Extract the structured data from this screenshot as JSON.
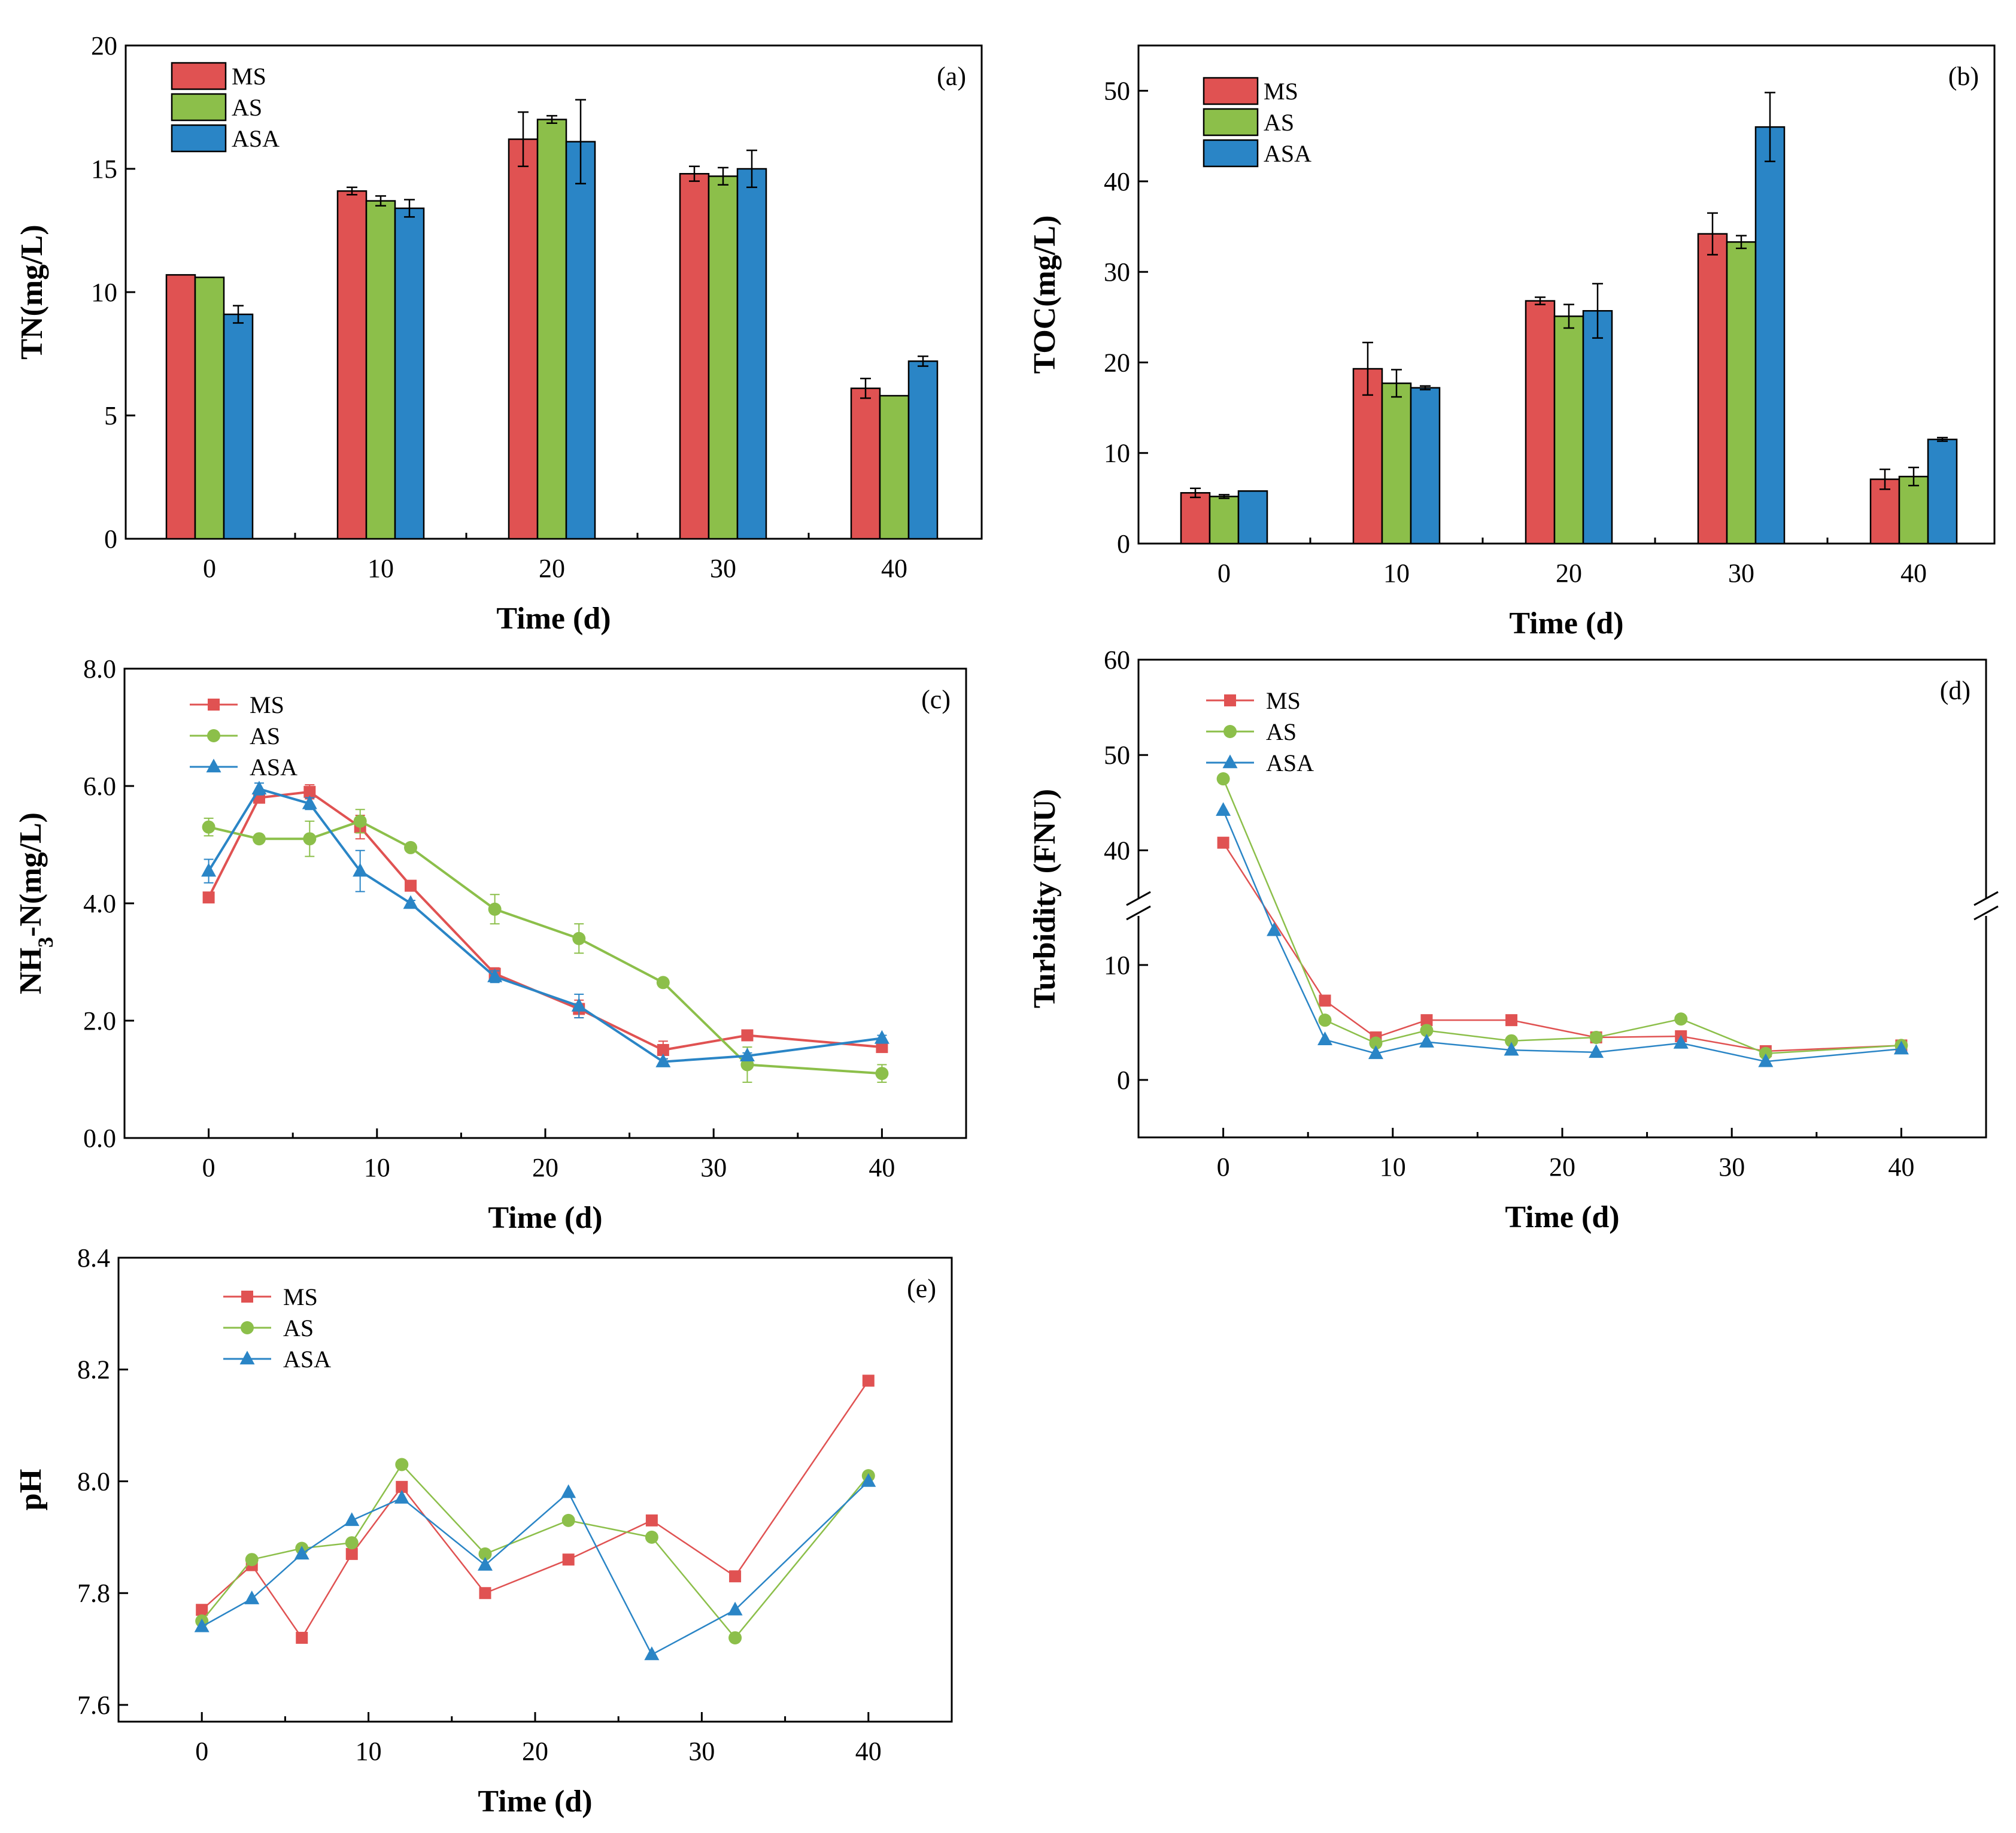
{
  "colors": {
    "MS": "#e05252",
    "AS": "#8cbf4a",
    "ASA": "#2a85c6",
    "axis": "#000000"
  },
  "chart_data": [
    {
      "id": "a",
      "type": "bar",
      "panel_label": "(a)",
      "title": "",
      "xlabel": "Time (d)",
      "ylabel": "TN(mg/L)",
      "ylim": [
        0,
        20
      ],
      "yticks": [
        "0",
        "5",
        "10",
        "15",
        "20"
      ],
      "categories": [
        "0",
        "10",
        "20",
        "30",
        "40"
      ],
      "series": [
        {
          "name": "MS",
          "values": [
            10.7,
            14.1,
            16.2,
            14.8,
            6.1
          ],
          "errors": [
            0,
            0.15,
            1.1,
            0.3,
            0.4
          ]
        },
        {
          "name": "AS",
          "values": [
            10.6,
            13.7,
            17.0,
            14.7,
            5.8
          ],
          "errors": [
            0,
            0.2,
            0.15,
            0.35,
            0
          ]
        },
        {
          "name": "ASA",
          "values": [
            9.1,
            13.4,
            16.1,
            15.0,
            7.2
          ],
          "errors": [
            0.35,
            0.35,
            1.7,
            0.75,
            0.2
          ]
        }
      ]
    },
    {
      "id": "b",
      "type": "bar",
      "panel_label": "(b)",
      "title": "",
      "xlabel": "Time (d)",
      "ylabel": "TOC(mg/L)",
      "ylim": [
        0,
        55
      ],
      "yticks": [
        "0",
        "10",
        "20",
        "30",
        "40",
        "50"
      ],
      "categories": [
        "0",
        "10",
        "20",
        "30",
        "40"
      ],
      "series": [
        {
          "name": "MS",
          "values": [
            5.6,
            19.3,
            26.8,
            34.2,
            7.1
          ],
          "errors": [
            0.5,
            2.9,
            0.4,
            2.3,
            1.1
          ]
        },
        {
          "name": "AS",
          "values": [
            5.2,
            17.7,
            25.1,
            33.3,
            7.4
          ],
          "errors": [
            0.2,
            1.5,
            1.3,
            0.7,
            1.0
          ]
        },
        {
          "name": "ASA",
          "values": [
            5.8,
            17.2,
            25.7,
            46.0,
            11.5
          ],
          "errors": [
            0,
            0.2,
            3.0,
            3.8,
            0.2
          ]
        }
      ]
    },
    {
      "id": "c",
      "type": "line",
      "panel_label": "(c)",
      "title": "",
      "xlabel": "Time (d)",
      "ylabel": "NH3-N(mg/L)",
      "xlim": [
        -5,
        45
      ],
      "ylim": [
        0,
        8
      ],
      "xticks": [
        "0",
        "10",
        "20",
        "30",
        "40"
      ],
      "yticks": [
        "0.0",
        "2.0",
        "4.0",
        "6.0",
        "8.0"
      ],
      "series": [
        {
          "name": "MS",
          "marker": "square",
          "x": [
            0,
            3,
            6,
            9,
            12,
            17,
            22,
            27,
            32,
            40
          ],
          "values": [
            4.1,
            5.8,
            5.9,
            5.3,
            4.3,
            2.8,
            2.2,
            1.5,
            1.75,
            1.55
          ],
          "errors": [
            0.05,
            0.05,
            0.12,
            0.2,
            0.05,
            0.1,
            0.15,
            0.15,
            0.05,
            0.05
          ]
        },
        {
          "name": "AS",
          "marker": "circle",
          "x": [
            0,
            3,
            6,
            9,
            12,
            17,
            22,
            27,
            32,
            40
          ],
          "values": [
            5.3,
            5.1,
            5.1,
            5.4,
            4.95,
            3.9,
            3.4,
            2.65,
            1.25,
            1.1
          ],
          "errors": [
            0.15,
            0.05,
            0.3,
            0.2,
            0.05,
            0.25,
            0.25,
            0.05,
            0.3,
            0.15
          ]
        },
        {
          "name": "ASA",
          "marker": "triangle",
          "x": [
            0,
            3,
            6,
            9,
            12,
            17,
            22,
            27,
            32,
            40
          ],
          "values": [
            4.55,
            5.95,
            5.7,
            4.55,
            4.0,
            2.75,
            2.25,
            1.3,
            1.4,
            1.7
          ],
          "errors": [
            0.2,
            0.1,
            0.1,
            0.35,
            0.05,
            0.1,
            0.2,
            0.05,
            0.05,
            0.05
          ]
        }
      ]
    },
    {
      "id": "d",
      "type": "line",
      "panel_label": "(d)",
      "title": "",
      "xlabel": "Time (d)",
      "ylabel": "Turbidity (FNU)",
      "axis_break": {
        "lower_range": [
          -5,
          15
        ],
        "upper_range": [
          34,
          60
        ]
      },
      "xlim": [
        -5,
        45
      ],
      "xticks": [
        "0",
        "10",
        "20",
        "30",
        "40"
      ],
      "yticks_lower": [
        "0",
        "10"
      ],
      "yticks_upper": [
        "40",
        "50",
        "60"
      ],
      "series": [
        {
          "name": "MS",
          "marker": "square",
          "x": [
            0,
            6,
            9,
            12,
            17,
            22,
            27,
            32,
            40
          ],
          "values": [
            40.8,
            6.9,
            3.7,
            5.2,
            5.2,
            3.7,
            3.8,
            2.5,
            3.0
          ]
        },
        {
          "name": "AS",
          "marker": "circle",
          "x": [
            0,
            6,
            9,
            12,
            17,
            22,
            27,
            32,
            40
          ],
          "values": [
            47.5,
            5.2,
            3.2,
            4.3,
            3.4,
            3.7,
            5.3,
            2.3,
            3.0
          ]
        },
        {
          "name": "ASA",
          "marker": "triangle",
          "x": [
            0,
            3,
            6,
            9,
            12,
            17,
            22,
            27,
            32,
            40
          ],
          "values": [
            44.2,
            13.0,
            3.5,
            2.3,
            3.3,
            2.6,
            2.4,
            3.2,
            1.6,
            2.7
          ]
        }
      ]
    },
    {
      "id": "e",
      "type": "line",
      "panel_label": "(e)",
      "title": "",
      "xlabel": "Time (d)",
      "ylabel": "pH",
      "xlim": [
        -5,
        45
      ],
      "ylim": [
        7.57,
        8.4
      ],
      "xticks": [
        "0",
        "10",
        "20",
        "30",
        "40"
      ],
      "yticks": [
        "7.6",
        "7.8",
        "8.0",
        "8.2",
        "8.4"
      ],
      "series": [
        {
          "name": "MS",
          "marker": "square",
          "x": [
            0,
            3,
            6,
            9,
            12,
            17,
            22,
            27,
            32,
            40
          ],
          "values": [
            7.77,
            7.85,
            7.72,
            7.87,
            7.99,
            7.8,
            7.86,
            7.93,
            7.83,
            8.18
          ]
        },
        {
          "name": "AS",
          "marker": "circle",
          "x": [
            0,
            3,
            6,
            9,
            12,
            17,
            22,
            27,
            32,
            40
          ],
          "values": [
            7.75,
            7.86,
            7.88,
            7.89,
            8.03,
            7.87,
            7.93,
            7.9,
            7.72,
            8.01
          ]
        },
        {
          "name": "ASA",
          "marker": "triangle",
          "x": [
            0,
            3,
            6,
            9,
            12,
            17,
            22,
            27,
            32,
            40
          ],
          "values": [
            7.74,
            7.79,
            7.87,
            7.93,
            7.97,
            7.85,
            7.98,
            7.69,
            7.77,
            8.0
          ]
        }
      ]
    }
  ]
}
